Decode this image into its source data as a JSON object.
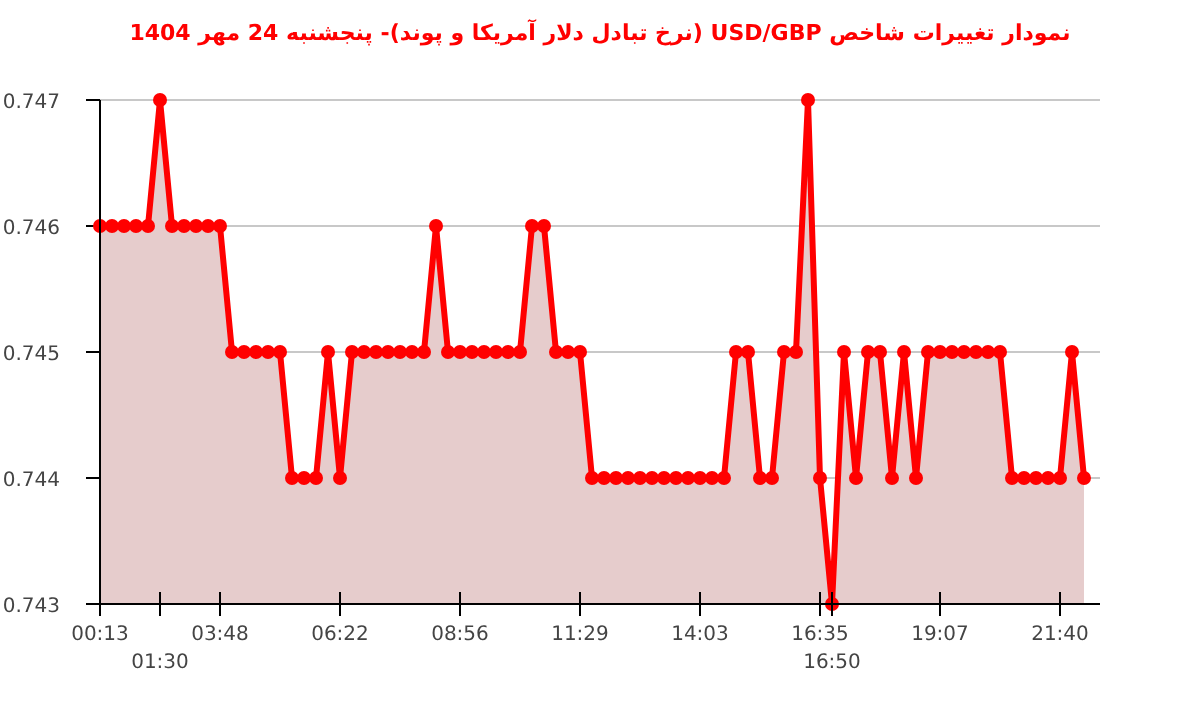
{
  "chart_data": {
    "type": "area",
    "title": "نمودار تغییرات شاخص USD/GBP (نرخ تبادل دلار آمریکا و پوند)- پنجشنبه  24 مهر 1404",
    "categories": [
      "00:13",
      null,
      null,
      null,
      null,
      "01:30",
      null,
      null,
      null,
      null,
      "03:48",
      null,
      null,
      null,
      null,
      null,
      null,
      null,
      null,
      null,
      "06:22",
      null,
      null,
      null,
      null,
      null,
      null,
      null,
      null,
      null,
      "08:56",
      null,
      null,
      null,
      null,
      null,
      null,
      null,
      null,
      null,
      "11:29",
      null,
      null,
      null,
      null,
      null,
      null,
      null,
      null,
      null,
      "14:03",
      null,
      null,
      null,
      null,
      null,
      null,
      null,
      null,
      null,
      "16:35",
      "16:50",
      null,
      null,
      null,
      null,
      null,
      null,
      null,
      null,
      "19:07",
      null,
      null,
      null,
      null,
      null,
      null,
      null,
      null,
      null,
      "21:40",
      null,
      null
    ],
    "series": [
      {
        "color": "#ff0000",
        "values": [
          0.746,
          0.746,
          0.746,
          0.746,
          0.746,
          0.747,
          0.746,
          0.746,
          0.746,
          0.746,
          0.746,
          0.745,
          0.745,
          0.745,
          0.745,
          0.745,
          0.744,
          0.744,
          0.744,
          0.745,
          0.744,
          0.745,
          0.745,
          0.745,
          0.745,
          0.745,
          0.745,
          0.745,
          0.746,
          0.745,
          0.745,
          0.745,
          0.745,
          0.745,
          0.745,
          0.745,
          0.746,
          0.746,
          0.745,
          0.745,
          0.745,
          0.744,
          0.744,
          0.744,
          0.744,
          0.744,
          0.744,
          0.744,
          0.744,
          0.744,
          0.744,
          0.744,
          0.744,
          0.745,
          0.745,
          0.744,
          0.744,
          0.745,
          0.745,
          0.747,
          0.744,
          0.743,
          0.745,
          0.744,
          0.745,
          0.745,
          0.744,
          0.745,
          0.744,
          0.745,
          0.745,
          0.745,
          0.745,
          0.745,
          0.745,
          0.745,
          0.744,
          0.744,
          0.744,
          0.744,
          0.744,
          0.745,
          0.744
        ]
      }
    ],
    "ylim": [
      0.743,
      0.747
    ],
    "yticks": [
      0.743,
      0.744,
      0.745,
      0.746,
      0.747
    ],
    "grid": "y",
    "marker": "circle"
  }
}
